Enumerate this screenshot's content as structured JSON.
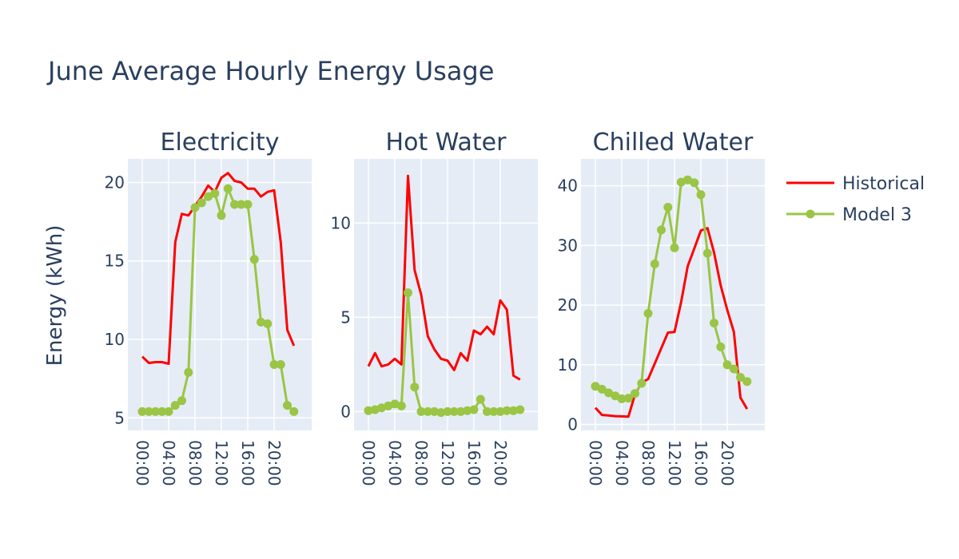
{
  "title": "June Average Hourly Energy Usage",
  "ylabel": "Energy (kWh)",
  "legend": {
    "placement": "top-right",
    "items": [
      "Historical",
      "Model 3"
    ]
  },
  "colors": {
    "historical": "#ff0000",
    "model": "#9ac545",
    "plot_bg": "#e5ecf6",
    "grid": "#ffffff",
    "text": "#2a3f5f"
  },
  "chart_data": [
    {
      "type": "line",
      "title": "Electricity",
      "x": [
        "00:00",
        "01:00",
        "02:00",
        "03:00",
        "04:00",
        "05:00",
        "06:00",
        "07:00",
        "08:00",
        "09:00",
        "10:00",
        "11:00",
        "12:00",
        "13:00",
        "14:00",
        "15:00",
        "16:00",
        "17:00",
        "18:00",
        "19:00",
        "20:00",
        "21:00",
        "22:00",
        "23:00"
      ],
      "xticks": [
        "00:00",
        "04:00",
        "08:00",
        "12:00",
        "16:00",
        "20:00"
      ],
      "yticks": [
        5,
        10,
        15,
        20
      ],
      "ylim": [
        4.2,
        21.5
      ],
      "grid": true,
      "series": [
        {
          "name": "Historical",
          "values": [
            8.9,
            8.5,
            8.55,
            8.55,
            8.45,
            16.2,
            18.0,
            17.9,
            18.5,
            19.1,
            19.8,
            19.4,
            20.3,
            20.6,
            20.1,
            20.0,
            19.6,
            19.6,
            19.1,
            19.4,
            19.5,
            16.2,
            10.6,
            9.6
          ]
        },
        {
          "name": "Model 3",
          "values": [
            5.4,
            5.4,
            5.4,
            5.4,
            5.4,
            5.8,
            6.1,
            7.9,
            18.4,
            18.7,
            19.1,
            19.3,
            17.9,
            19.6,
            18.6,
            18.6,
            18.6,
            15.1,
            11.1,
            11.0,
            8.4,
            8.4,
            5.8,
            5.4
          ]
        }
      ]
    },
    {
      "type": "line",
      "title": "Hot Water",
      "x": [
        "00:00",
        "01:00",
        "02:00",
        "03:00",
        "04:00",
        "05:00",
        "06:00",
        "07:00",
        "08:00",
        "09:00",
        "10:00",
        "11:00",
        "12:00",
        "13:00",
        "14:00",
        "15:00",
        "16:00",
        "17:00",
        "18:00",
        "19:00",
        "20:00",
        "21:00",
        "22:00",
        "23:00"
      ],
      "xticks": [
        "00:00",
        "04:00",
        "08:00",
        "12:00",
        "16:00",
        "20:00"
      ],
      "yticks": [
        0,
        5,
        10
      ],
      "ylim": [
        -1.0,
        13.4
      ],
      "grid": true,
      "series": [
        {
          "name": "Historical",
          "values": [
            2.4,
            3.1,
            2.4,
            2.5,
            2.8,
            2.5,
            12.5,
            7.5,
            6.2,
            4.0,
            3.3,
            2.8,
            2.7,
            2.2,
            3.1,
            2.7,
            4.3,
            4.1,
            4.5,
            4.1,
            5.9,
            5.4,
            1.9,
            1.7
          ]
        },
        {
          "name": "Model 3",
          "values": [
            0.05,
            0.1,
            0.2,
            0.3,
            0.4,
            0.3,
            6.3,
            1.3,
            0.0,
            0.0,
            0.0,
            -0.05,
            0.0,
            0.0,
            0.0,
            0.05,
            0.1,
            0.65,
            0.0,
            0.0,
            0.0,
            0.05,
            0.05,
            0.1
          ]
        }
      ]
    },
    {
      "type": "line",
      "title": "Chilled Water",
      "x": [
        "00:00",
        "01:00",
        "02:00",
        "03:00",
        "04:00",
        "05:00",
        "06:00",
        "07:00",
        "08:00",
        "09:00",
        "10:00",
        "11:00",
        "12:00",
        "13:00",
        "14:00",
        "15:00",
        "16:00",
        "17:00",
        "18:00",
        "19:00",
        "20:00",
        "21:00",
        "22:00",
        "23:00"
      ],
      "xticks": [
        "00:00",
        "04:00",
        "08:00",
        "12:00",
        "16:00",
        "20:00"
      ],
      "yticks": [
        0,
        10,
        20,
        30,
        40
      ],
      "ylim": [
        -1.0,
        44.5
      ],
      "grid": true,
      "series": [
        {
          "name": "Historical",
          "values": [
            2.8,
            1.6,
            1.5,
            1.4,
            1.35,
            1.3,
            5.0,
            7.0,
            7.6,
            10.2,
            12.8,
            15.4,
            15.5,
            20.5,
            26.5,
            29.5,
            32.5,
            32.9,
            28.8,
            23.3,
            19.2,
            15.5,
            4.5,
            2.6
          ]
        },
        {
          "name": "Model 3",
          "values": [
            6.4,
            5.9,
            5.3,
            4.8,
            4.3,
            4.4,
            5.2,
            6.9,
            18.6,
            26.9,
            32.6,
            36.4,
            29.6,
            40.6,
            41.0,
            40.5,
            38.5,
            28.7,
            17.0,
            13.0,
            10.0,
            9.3,
            7.9,
            7.2
          ]
        }
      ]
    }
  ]
}
